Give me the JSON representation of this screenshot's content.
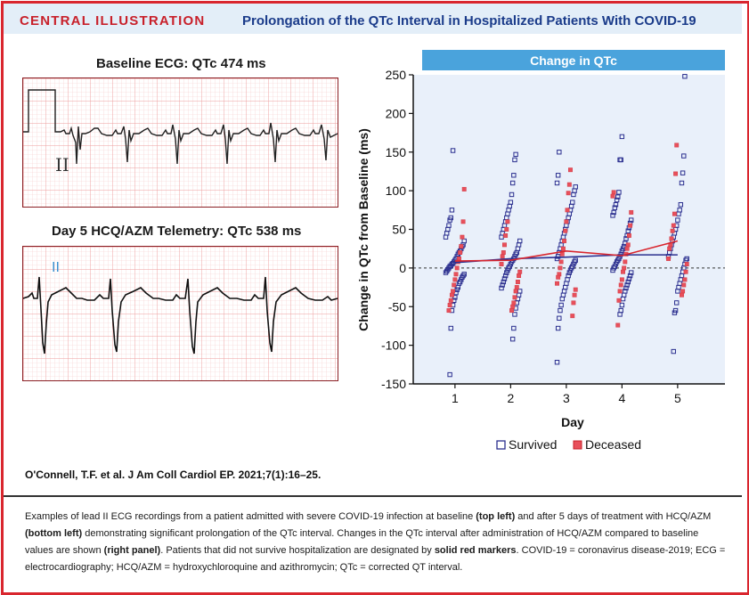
{
  "header": {
    "label": "CENTRAL ILLUSTRATION",
    "title": "Prolongation of the QTc Interval in Hospitalized Patients With COVID-19"
  },
  "ecg_baseline": {
    "title": "Baseline ECG: QTc 474 ms",
    "lead": "II"
  },
  "ecg_day5": {
    "title": "Day 5 HCQ/AZM Telemetry: QTc 538 ms",
    "lead": "II"
  },
  "citation": "O'Connell, T.F. et al. J Am Coll Cardiol EP. 2021;7(1):16–25.",
  "caption": {
    "p1": "Examples of lead II ECG recordings from a patient admitted with severe COVID-19 infection at baseline ",
    "b1": "(top left)",
    "p2": " and after 5 days of treatment with HCQ/AZM ",
    "b2": "(bottom left)",
    "p3": " demonstrating significant prolongation of the QTc interval. Changes in the QTc interval after administration of HCQ/AZM compared to baseline values are shown ",
    "b3": "(right panel)",
    "p4": ". Patients that did not survive hospitalization are designated by ",
    "b4": "solid red markers",
    "p5": ". COVID-19 = coronavirus disease-2019; ECG = electrocardiography; HCQ/AZM = hydroxychloroquine and azithromycin; QTc = corrected QT interval."
  },
  "colors": {
    "survived": "#2b2f8f",
    "deceased": "#e8505b",
    "panel_bg": "#e9f0fa",
    "header_bar": "#4aa3dc",
    "ecg_grid": "#f3b8b8"
  },
  "chart_data": {
    "type": "scatter",
    "title": "Change in QTc",
    "xlabel": "Day",
    "ylabel": "Change in QTc from Baseline (ms)",
    "x": [
      1,
      2,
      3,
      4,
      5
    ],
    "xlim": [
      0.25,
      5.85
    ],
    "ylim": [
      -150,
      250
    ],
    "yticks": [
      -150,
      -100,
      -50,
      0,
      50,
      100,
      150,
      200,
      250
    ],
    "reference_line": 0,
    "legend": [
      "Survived",
      "Deceased"
    ],
    "series": [
      {
        "name": "Survived",
        "marker": "open-square",
        "mean_values": [
          7,
          12,
          14,
          17,
          17
        ],
        "points": {
          "1": [
            152,
            75,
            65,
            62,
            55,
            50,
            45,
            40,
            35,
            30,
            28,
            25,
            22,
            20,
            18,
            15,
            12,
            10,
            8,
            6,
            5,
            3,
            2,
            0,
            -2,
            -4,
            -6,
            -8,
            -10,
            -12,
            -15,
            -18,
            -20,
            -25,
            -28,
            -32,
            -38,
            -42,
            -48,
            -55,
            -78,
            -138
          ],
          "2": [
            147,
            140,
            120,
            110,
            95,
            85,
            80,
            75,
            70,
            65,
            60,
            55,
            50,
            45,
            40,
            35,
            30,
            25,
            20,
            18,
            15,
            12,
            10,
            8,
            5,
            2,
            0,
            -3,
            -6,
            -10,
            -14,
            -18,
            -22,
            -26,
            -30,
            -35,
            -40,
            -45,
            -52,
            -60,
            -78,
            -92
          ],
          "3": [
            150,
            120,
            110,
            105,
            100,
            95,
            85,
            80,
            75,
            70,
            65,
            60,
            55,
            50,
            45,
            40,
            35,
            30,
            25,
            20,
            15,
            12,
            10,
            8,
            5,
            2,
            0,
            -3,
            -6,
            -10,
            -15,
            -20,
            -25,
            -30,
            -35,
            -40,
            -48,
            -55,
            -65,
            -78,
            -122
          ],
          "4": [
            170,
            140,
            140,
            98,
            92,
            88,
            82,
            78,
            72,
            68,
            62,
            58,
            52,
            48,
            42,
            38,
            32,
            28,
            25,
            22,
            18,
            15,
            12,
            10,
            8,
            5,
            2,
            0,
            -3,
            -6,
            -10,
            -14,
            -18,
            -22,
            -26,
            -30,
            -35,
            -40,
            -48,
            -55,
            -60
          ],
          "5": [
            248,
            145,
            123,
            110,
            82,
            75,
            70,
            62,
            55,
            50,
            45,
            40,
            35,
            30,
            25,
            20,
            15,
            12,
            10,
            5,
            0,
            -5,
            -10,
            -15,
            -20,
            -25,
            -30,
            -45,
            -55,
            -58,
            -108
          ]
        }
      },
      {
        "name": "Deceased",
        "marker": "filled-square",
        "mean_values": [
          9,
          10,
          22,
          16,
          35
        ],
        "points": {
          "1": [
            102,
            60,
            40,
            28,
            20,
            12,
            8,
            0,
            -8,
            -15,
            -22,
            -30,
            -35,
            -42,
            -48,
            -55
          ],
          "2": [
            60,
            50,
            42,
            30,
            20,
            15,
            5,
            -5,
            -10,
            -18,
            -25,
            -30,
            -38,
            -45,
            -50,
            -55
          ],
          "3": [
            127,
            108,
            97,
            75,
            60,
            48,
            35,
            25,
            18,
            8,
            0,
            -8,
            -12,
            -20,
            -28,
            -35,
            -45,
            -62
          ],
          "4": [
            98,
            93,
            72,
            55,
            42,
            30,
            25,
            18,
            8,
            0,
            -5,
            -15,
            -22,
            -30,
            -42,
            -74
          ],
          "5": [
            159,
            122,
            70,
            55,
            48,
            38,
            30,
            25,
            12,
            5,
            -5,
            -15,
            -22,
            -30,
            -35
          ]
        }
      }
    ]
  }
}
